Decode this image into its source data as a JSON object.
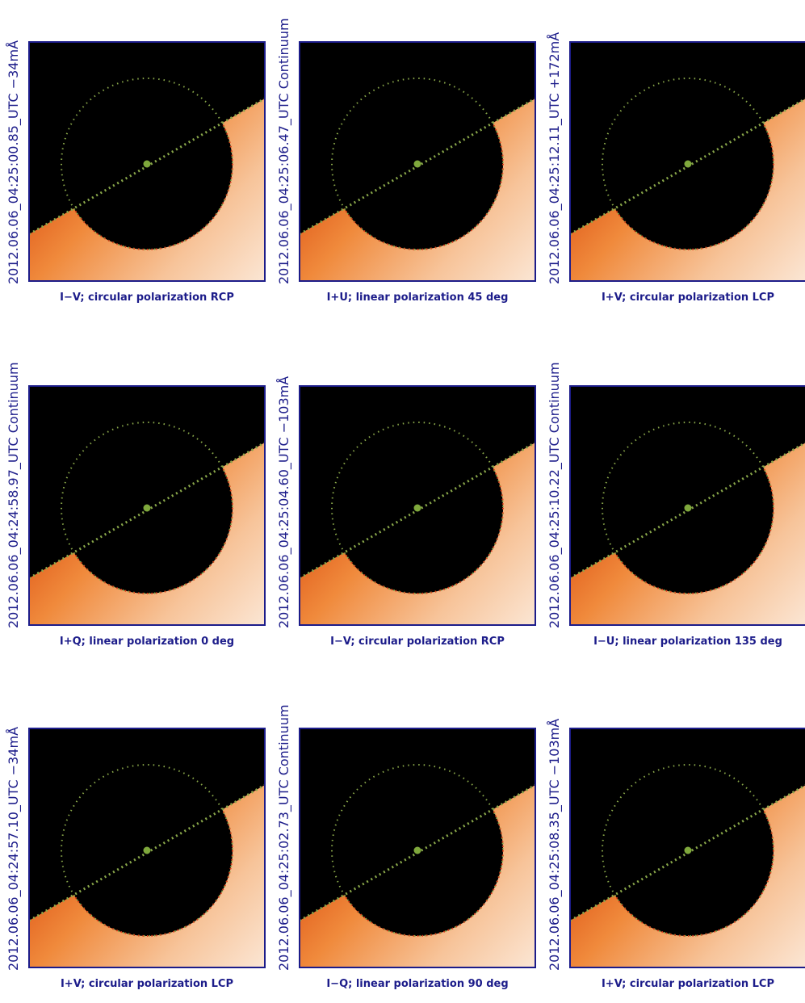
{
  "panels": [
    {
      "side": "2012.06.06_04:25:00.85_UTC  −34mÅ",
      "caption": "I−V; circular polarization RCP"
    },
    {
      "side": "2012.06.06_04:25:06.47_UTC Continuum",
      "caption": "I+U; linear polarization  45 deg"
    },
    {
      "side": "2012.06.06_04:25:12.11_UTC +172mÅ",
      "caption": "I+V; circular polarization LCP"
    },
    {
      "side": "2012.06.06_04:24:58.97_UTC Continuum",
      "caption": "I+Q; linear polarization   0 deg"
    },
    {
      "side": "2012.06.06_04:25:04.60_UTC  −103mÅ",
      "caption": "I−V; circular polarization RCP"
    },
    {
      "side": "2012.06.06_04:25:10.22_UTC Continuum",
      "caption": "I−U; linear polarization 135 deg"
    },
    {
      "side": "2012.06.06_04:24:57.10_UTC  −34mÅ",
      "caption": "I+V; circular polarization LCP"
    },
    {
      "side": "2012.06.06_04:25:02.73_UTC Continuum",
      "caption": "I−Q; linear polarization  90 deg"
    },
    {
      "side": "2012.06.06_04:25:08.35_UTC  −103mÅ",
      "caption": "I+V; circular polarization LCP"
    }
  ]
}
